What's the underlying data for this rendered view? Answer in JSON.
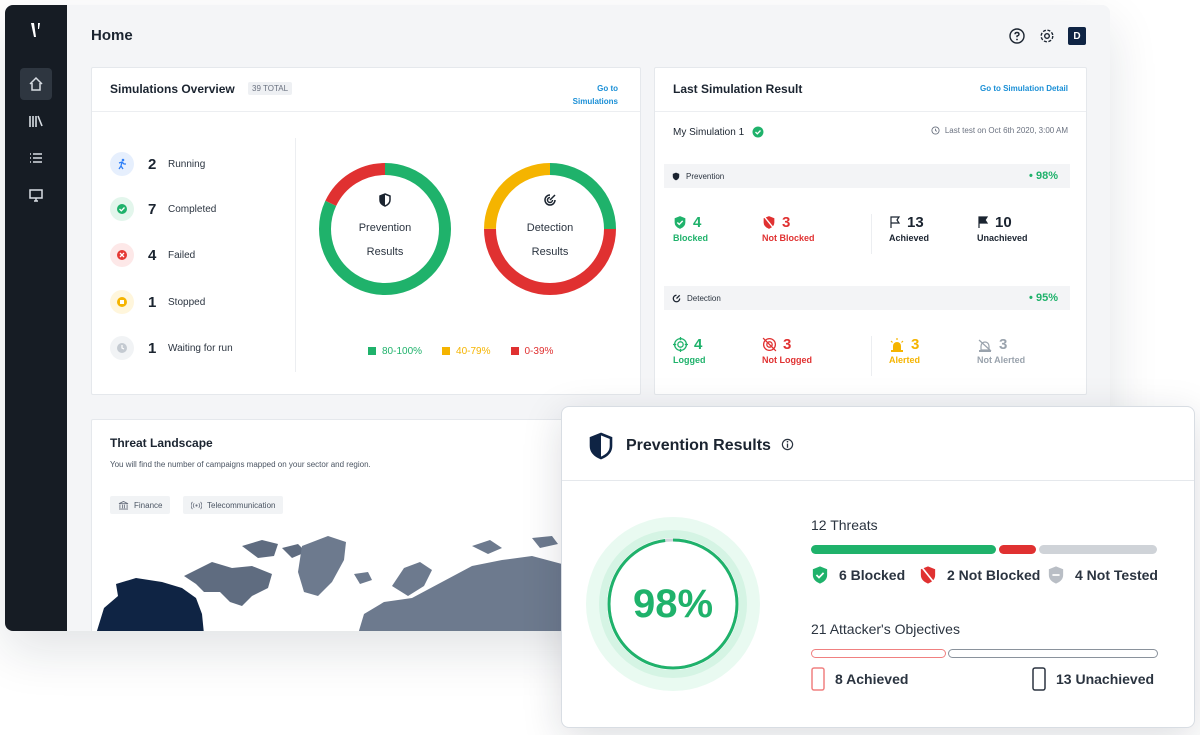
{
  "page": {
    "title": "Home",
    "avatar_initial": "D"
  },
  "sidebar": {
    "items": [
      "home",
      "library",
      "list",
      "monitor"
    ]
  },
  "simulations_overview": {
    "title": "Simulations Overview",
    "total_badge": "39 TOTAL",
    "link_line1": "Go to",
    "link_line2": "Simulations",
    "statuses": [
      {
        "count": "2",
        "label": "Running",
        "color": "#2d7ef7"
      },
      {
        "count": "7",
        "label": "Completed",
        "color": "#1fb26b"
      },
      {
        "count": "4",
        "label": "Failed",
        "color": "#e53935"
      },
      {
        "count": "1",
        "label": "Stopped",
        "color": "#f5b400"
      },
      {
        "count": "1",
        "label": "Waiting for run",
        "color": "#b0b7c0"
      }
    ],
    "donuts": [
      {
        "line1": "Prevention",
        "line2": "Results",
        "segments": [
          {
            "color": "#1fb26b",
            "fraction": 0.82
          },
          {
            "color": "#e03131",
            "fraction": 0.18
          }
        ]
      },
      {
        "line1": "Detection",
        "line2": "Results",
        "segments": [
          {
            "color": "#1fb26b",
            "fraction": 0.25
          },
          {
            "color": "#e03131",
            "fraction": 0.5
          },
          {
            "color": "#f5b400",
            "fraction": 0.25
          }
        ]
      }
    ],
    "legend": [
      {
        "label": "80-100%",
        "color": "#1fb26b"
      },
      {
        "label": "40-79%",
        "color": "#f5b400"
      },
      {
        "label": "0-39%",
        "color": "#e03131"
      }
    ]
  },
  "last_simulation": {
    "title": "Last Simulation Result",
    "link": "Go to Simulation Detail",
    "name": "My Simulation 1",
    "last_test": "Last test on Oct 6th 2020, 3:00 AM",
    "prevention": {
      "label": "Prevention",
      "pct": "98%",
      "metrics": [
        {
          "value": "4",
          "label": "Blocked",
          "color": "#1fb26b"
        },
        {
          "value": "3",
          "label": "Not Blocked",
          "color": "#e03131"
        },
        {
          "value": "13",
          "label": "Achieved",
          "color": "#1b2430"
        },
        {
          "value": "10",
          "label": "Unachieved",
          "color": "#1b2430"
        }
      ]
    },
    "detection": {
      "label": "Detection",
      "pct": "95%",
      "metrics": [
        {
          "value": "4",
          "label": "Logged",
          "color": "#1fb26b"
        },
        {
          "value": "3",
          "label": "Not Logged",
          "color": "#e03131"
        },
        {
          "value": "3",
          "label": "Alerted",
          "color": "#f5b400"
        },
        {
          "value": "3",
          "label": "Not Alerted",
          "color": "#9aa3ad"
        }
      ]
    }
  },
  "threat_landscape": {
    "title": "Threat Landscape",
    "description": "You will find the number of campaigns mapped on your sector and region.",
    "chips": [
      "Finance",
      "Telecommunication"
    ]
  },
  "prevention_results": {
    "title": "Prevention Results",
    "percent": "98%",
    "percent_value": 0.98,
    "threats_label": "12 Threats",
    "threat_items": [
      {
        "label": "6 Blocked",
        "color": "#1fb26b"
      },
      {
        "label": "2 Not Blocked",
        "color": "#e03131"
      },
      {
        "label": "4 Not Tested",
        "color": "#b9bec5"
      }
    ],
    "objectives_label": "21 Attacker's Objectives",
    "objective_items": [
      {
        "label": "8 Achieved",
        "color": "#f08080"
      },
      {
        "label": "13 Unachieved",
        "color": "#8a929c"
      }
    ]
  }
}
